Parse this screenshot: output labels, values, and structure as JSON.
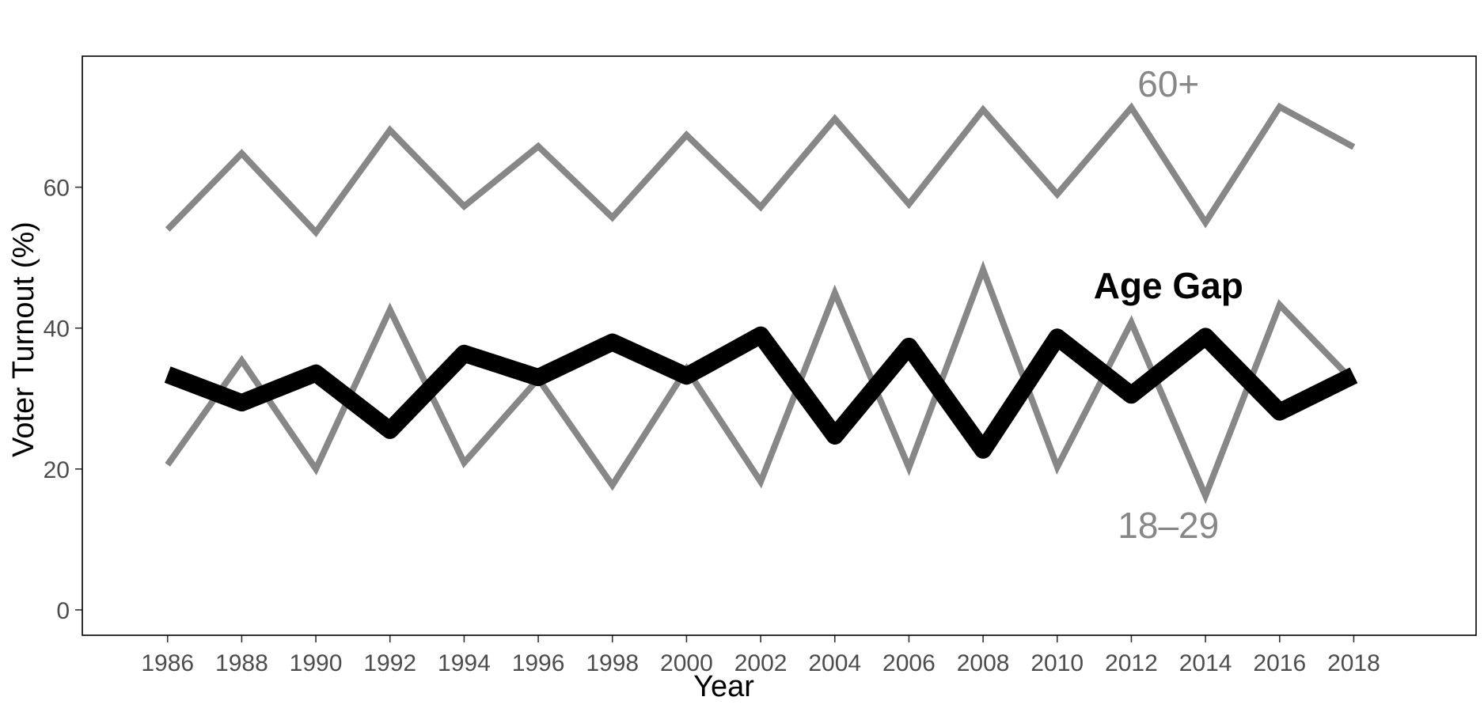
{
  "chart_data": {
    "type": "line",
    "title": "",
    "xlabel": "Year",
    "ylabel": "Voter Turnout (%)",
    "x": [
      1986,
      1988,
      1990,
      1992,
      1994,
      1996,
      1998,
      2000,
      2002,
      2004,
      2006,
      2008,
      2010,
      2012,
      2014,
      2016,
      2018
    ],
    "xlim": [
      1983.7,
      2021.3
    ],
    "ylim": [
      -3.6,
      78.6
    ],
    "yticks": [
      0,
      20,
      40,
      60
    ],
    "grid": false,
    "legend": "none",
    "series": [
      {
        "name": "60+",
        "color": "#878787",
        "values": [
          54.0,
          64.8,
          53.6,
          68.1,
          57.3,
          65.8,
          55.7,
          67.4,
          57.2,
          69.7,
          57.6,
          71.0,
          59.0,
          71.3,
          55.0,
          71.4,
          65.7
        ]
      },
      {
        "name": "18–29",
        "color": "#878787",
        "values": [
          20.6,
          35.4,
          20.0,
          42.6,
          20.9,
          32.8,
          17.7,
          34.2,
          18.2,
          45.0,
          20.2,
          48.3,
          20.3,
          40.8,
          16.2,
          43.3,
          32.4
        ]
      },
      {
        "name": "Age Gap",
        "color": "#000000",
        "values": [
          33.4,
          29.4,
          33.6,
          25.5,
          36.4,
          33.0,
          38.0,
          33.2,
          39.0,
          24.7,
          37.4,
          22.7,
          38.7,
          30.5,
          38.8,
          28.1,
          33.3
        ]
      }
    ]
  }
}
